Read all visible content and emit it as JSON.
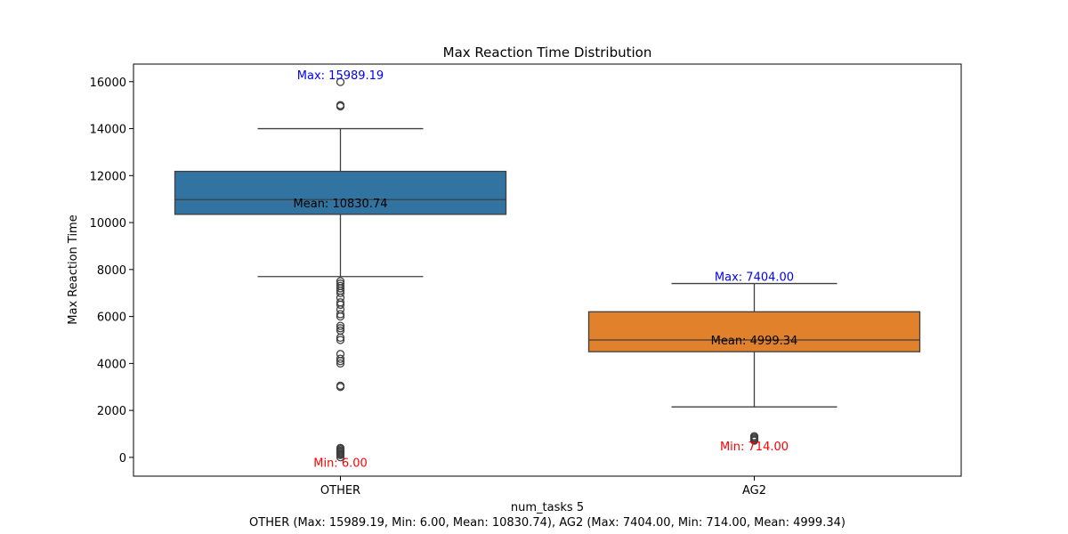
{
  "chart_data": {
    "type": "box",
    "title": "Max Reaction Time Distribution",
    "xlabel": "num_tasks 5",
    "ylabel": "Max Reaction Time",
    "footer": "OTHER (Max: 15989.19, Min: 6.00, Mean: 10830.74), AG2 (Max: 7404.00, Min: 714.00, Mean: 4999.34)",
    "ylim": [
      -800,
      16750
    ],
    "yticks": [
      0,
      2000,
      4000,
      6000,
      8000,
      10000,
      12000,
      14000,
      16000
    ],
    "grid": false,
    "categories": [
      "OTHER",
      "AG2"
    ],
    "boxes": [
      {
        "category": "OTHER",
        "color": "#3274a1",
        "q1": 10350,
        "median": 10980,
        "q3": 12180,
        "whisker_low": 7700,
        "whisker_high": 14000,
        "outliers": [
          15989.19,
          15000,
          14950,
          7500,
          7400,
          7300,
          7200,
          7100,
          7000,
          6800,
          6600,
          6500,
          6300,
          6100,
          6000,
          5600,
          5500,
          5400,
          5100,
          5000,
          4400,
          4200,
          4100,
          4000,
          3050,
          3000,
          400,
          350,
          300,
          250,
          200,
          150,
          100,
          6
        ],
        "max_label": "Max: 15989.19",
        "min_label": "Min: 6.00",
        "mean_label": "Mean: 10830.74",
        "max": 15989.19,
        "min": 6.0,
        "mean": 10830.74
      },
      {
        "category": "AG2",
        "color": "#e1812c",
        "q1": 4500,
        "median": 5000,
        "q3": 6200,
        "whisker_low": 2150,
        "whisker_high": 7404,
        "outliers": [
          900,
          850,
          800,
          750,
          714
        ],
        "max_label": "Max: 7404.00",
        "min_label": "Min: 714.00",
        "mean_label": "Mean: 4999.34",
        "max": 7404.0,
        "min": 714.0,
        "mean": 4999.34
      }
    ],
    "colors": {
      "max_label": "#0000ff",
      "min_label": "#ff0000",
      "mean_label": "#000000",
      "line": "#3f3f3f"
    }
  }
}
